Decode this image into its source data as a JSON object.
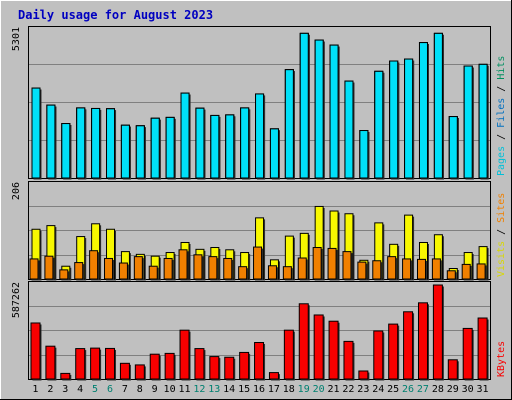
{
  "chart_data": {
    "type": "bar",
    "title": "Daily usage for August 2023",
    "categories": [
      "1",
      "2",
      "3",
      "4",
      "5",
      "6",
      "7",
      "8",
      "9",
      "10",
      "11",
      "12",
      "13",
      "14",
      "15",
      "16",
      "17",
      "18",
      "19",
      "20",
      "21",
      "22",
      "23",
      "24",
      "25",
      "26",
      "27",
      "28",
      "29",
      "30",
      "31"
    ],
    "weekend_days": [
      "5",
      "6",
      "12",
      "13",
      "19",
      "20",
      "26",
      "27"
    ],
    "grid": true,
    "colors": {
      "background": "#c0c0c0",
      "plot": "#c0c0c0",
      "border": "#000000",
      "title": "#0000c0",
      "pages": "#00e0f8",
      "files": "#0088d0",
      "hits": "#009060",
      "visits": "#f8f800",
      "sites": "#f08000",
      "kbytes": "#f80000",
      "weekend_label": "#008070",
      "weekday_label": "#000000"
    },
    "panels": [
      {
        "axis_max_label": "5301",
        "ylim": [
          0,
          5301
        ],
        "right_labels": [
          {
            "text": "Pages",
            "color": "#00c0d8"
          },
          {
            "text": " / ",
            "color": "#000000"
          },
          {
            "text": "Files",
            "color": "#0070c0"
          },
          {
            "text": " / ",
            "color": "#000000"
          },
          {
            "text": "Hits",
            "color": "#009060"
          }
        ],
        "series": [
          {
            "name": "Hits",
            "values": [
              3220,
              2610,
              1950,
              2510,
              2490,
              2480,
              1890,
              1870,
              2140,
              2170,
              3040,
              2500,
              2240,
              2260,
              2510,
              3010,
              1760,
              3880,
              5180,
              4940,
              4760,
              3470,
              1700,
              3820,
              4190,
              4260,
              4850,
              5180,
              2200,
              4010,
              4070
            ]
          },
          {
            "name": "Files",
            "values": [
              3220,
              2610,
              1950,
              2510,
              2490,
              2480,
              1890,
              1870,
              2140,
              2170,
              3040,
              2500,
              2240,
              2260,
              2510,
              3010,
              1760,
              3880,
              5180,
              4940,
              4760,
              3470,
              1700,
              3820,
              4190,
              4260,
              4850,
              5180,
              2200,
              4010,
              4070
            ]
          },
          {
            "name": "Pages",
            "values": [
              3220,
              2610,
              1950,
              2510,
              2490,
              2480,
              1890,
              1870,
              2140,
              2170,
              3040,
              2500,
              2240,
              2260,
              2510,
              3010,
              1760,
              3880,
              5180,
              4940,
              4760,
              3470,
              1700,
              3820,
              4190,
              4260,
              4850,
              5180,
              2200,
              4010,
              4070
            ]
          }
        ]
      },
      {
        "axis_max_label": "206",
        "ylim": [
          0,
          206
        ],
        "right_labels": [
          {
            "text": "Visits",
            "color": "#d8d800"
          },
          {
            "text": " / ",
            "color": "#000000"
          },
          {
            "text": "Sites",
            "color": "#f08000"
          }
        ],
        "series": [
          {
            "name": "Visits",
            "values": [
              109,
              117,
              28,
              93,
              121,
              109,
              60,
              54,
              50,
              58,
              80,
              65,
              69,
              64,
              58,
              134,
              42,
              94,
              100,
              159,
              149,
              143,
              41,
              123,
              76,
              140,
              80,
              97,
              23,
              58,
              71
            ]
          },
          {
            "name": "Sites",
            "values": [
              44,
              50,
              20,
              36,
              62,
              45,
              35,
              49,
              28,
              45,
              64,
              53,
              49,
              45,
              27,
              70,
              29,
              27,
              46,
              69,
              67,
              60,
              37,
              40,
              49,
              44,
              43,
              44,
              18,
              32,
              33
            ]
          }
        ]
      },
      {
        "axis_max_label": "587262",
        "ylim": [
          0,
          587262
        ],
        "right_labels": [
          {
            "text": "KBytes",
            "color": "#f80000"
          }
        ],
        "series": [
          {
            "name": "KBytes",
            "values": [
              350000,
              205000,
              35000,
              190000,
              193000,
              191000,
              98000,
              88000,
              155000,
              160000,
              305000,
              190000,
              140000,
              136000,
              166000,
              228000,
              40000,
              305000,
              470000,
              400000,
              361000,
              235000,
              50000,
              300000,
              343000,
              420000,
              476000,
              587262,
              120000,
              316000,
              381000
            ]
          }
        ]
      }
    ]
  }
}
